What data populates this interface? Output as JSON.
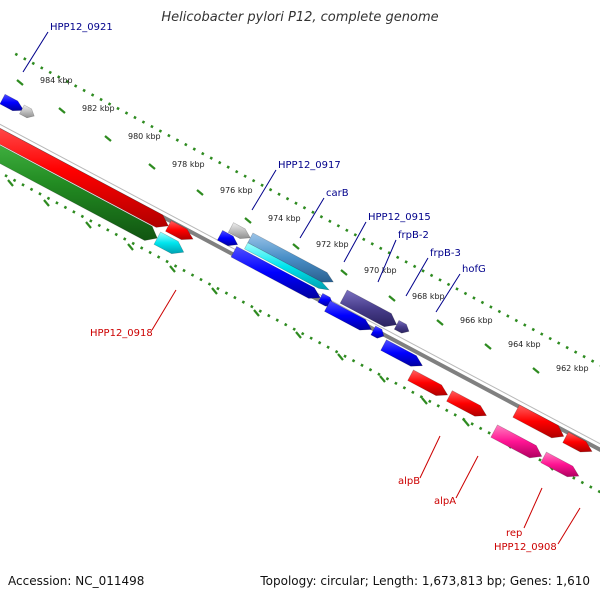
{
  "title": "Helicobacter pylori P12, complete genome",
  "footer": {
    "accession": "Accession: NC_011498",
    "summary": "Topology: circular; Length: 1,673,813 bp; Genes: 1,610"
  },
  "colors": {
    "backbone": "#808080",
    "tick": "#2e8b20",
    "forward_label": "#00008b",
    "reverse_label": "#cc0000",
    "red": "#ff0000",
    "blue": "#0000ff",
    "green": "#228b22",
    "cyan": "#00e5ee",
    "gray": "#c0c0c0",
    "steelblue": "#4a90c8",
    "darkslate": "#483d8b",
    "magenta": "#ff1493"
  },
  "tick_labels": [
    "984 kbp",
    "982 kbp",
    "980 kbp",
    "978 kbp",
    "976 kbp",
    "974 kbp",
    "972 kbp",
    "970 kbp",
    "968 kbp",
    "966 kbp",
    "964 kbp",
    "962 kbp"
  ],
  "forward_labels": [
    "HPP12_0921",
    "HPP12_0917",
    "carB",
    "HPP12_0915",
    "frpB-2",
    "frpB-3",
    "hofG"
  ],
  "reverse_labels": [
    "HPP12_0918",
    "alpB",
    "alpA",
    "rep",
    "HPP12_0908"
  ]
}
